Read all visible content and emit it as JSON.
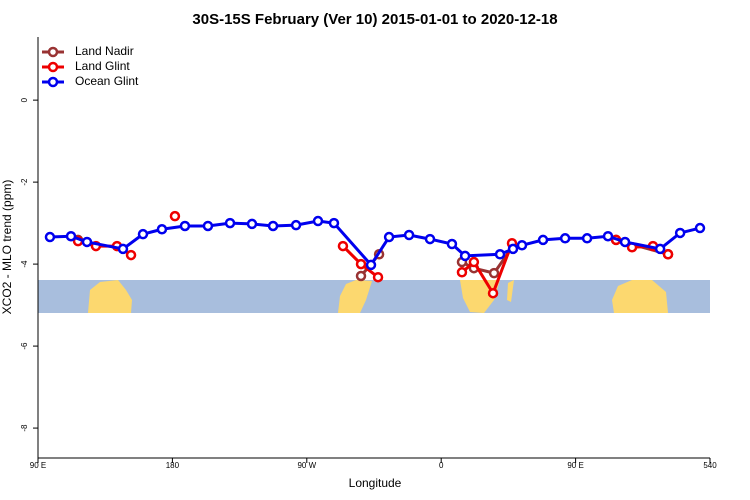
{
  "chart_data": {
    "type": "line",
    "title": "30S-15S February (Ver 10)   2015-01-01 to 2020-12-18",
    "x_label": "Longitude",
    "y_label": "XCO2 - MLO trend (ppm)",
    "xlim": [
      90,
      540
    ],
    "ylim": [
      -8.73,
      1.54
    ],
    "xticks": [
      {
        "value": 90,
        "label": "90 E"
      },
      180,
      {
        "value": 270,
        "label": "90 W"
      },
      {
        "value": 360,
        "label": "0"
      },
      {
        "value": 450,
        "label": "90 E"
      },
      540
    ],
    "yticks": [
      0,
      -2,
      -4,
      -6,
      -8
    ],
    "legend": "top-left",
    "series": [
      {
        "name": "Land Nadir",
        "color": "#993333",
        "x": [
          116.8,
          null,
          306.3,
          318.4,
          null,
          373.9,
          381.9,
          395.4,
          408.1,
          null,
          477.1,
          511.9
        ],
        "values": [
          -3.41,
          null,
          -4.29,
          -3.76,
          null,
          -3.95,
          -4.1,
          -4.22,
          -3.56,
          null,
          -3.41,
          -3.76
        ]
      },
      {
        "name": "Land Glint",
        "color": "#ee0000",
        "x": [
          116.8,
          128.8,
          142.9,
          152.3,
          null,
          181.7,
          null,
          294.2,
          306.3,
          317.7,
          null,
          373.9,
          381.9,
          394.7,
          407.4,
          null,
          477.1,
          487.8,
          501.8,
          511.9
        ],
        "values": [
          -3.44,
          -3.56,
          -3.56,
          -3.78,
          null,
          -2.83,
          null,
          -3.56,
          -4.0,
          -4.32,
          null,
          -4.2,
          -3.95,
          -4.71,
          -3.49,
          null,
          -3.41,
          -3.59,
          -3.56,
          -3.76
        ]
      },
      {
        "name": "Ocean Glint",
        "color": "#0000ee",
        "x": [
          98.0,
          112.1,
          122.8,
          146.9,
          160.3,
          173.0,
          188.4,
          203.8,
          218.6,
          233.3,
          247.4,
          262.8,
          277.5,
          288.2,
          313.0,
          325.1,
          338.5,
          352.5,
          367.2,
          376.0,
          399.4,
          408.1,
          414.1,
          428.2,
          443.0,
          457.7,
          471.7,
          483.1,
          506.6,
          520.0,
          533.3
        ],
        "values": [
          -3.34,
          -3.32,
          -3.46,
          -3.63,
          -3.27,
          -3.15,
          -3.07,
          -3.07,
          -3.0,
          -3.02,
          -3.07,
          -3.05,
          -2.95,
          -3.0,
          -4.02,
          -3.34,
          -3.29,
          -3.39,
          -3.51,
          -3.8,
          -3.76,
          -3.63,
          -3.54,
          -3.41,
          -3.37,
          -3.37,
          -3.32,
          -3.46,
          -3.63,
          -3.24,
          -3.12
        ]
      }
    ]
  }
}
